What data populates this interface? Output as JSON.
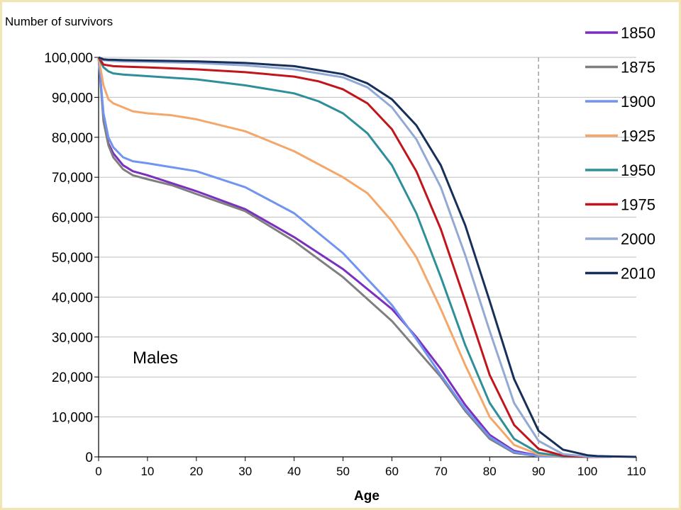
{
  "chart_data": {
    "type": "line",
    "title": "",
    "ylabel": "Number of survivors",
    "xlabel": "Age",
    "annotation": "Males",
    "xlim": [
      0,
      110
    ],
    "ylim": [
      0,
      100000
    ],
    "x_ticks": [
      "0",
      "10",
      "20",
      "30",
      "40",
      "50",
      "60",
      "70",
      "80",
      "90",
      "100",
      "110"
    ],
    "y_ticks": [
      "0",
      "10,000",
      "20,000",
      "30,000",
      "40,000",
      "50,000",
      "60,000",
      "70,000",
      "80,000",
      "90,000",
      "100,000"
    ],
    "grid": "horizontal",
    "legend_position": "right",
    "reference_line_x": 90,
    "series": [
      {
        "name": "1850",
        "color": "#7b2fbe",
        "x": [
          0,
          1,
          2,
          3,
          5,
          7,
          10,
          15,
          20,
          30,
          40,
          50,
          60,
          65,
          70,
          75,
          80,
          85,
          90,
          95,
          100,
          105
        ],
        "y": [
          100000,
          85000,
          78500,
          76000,
          73000,
          71500,
          70500,
          68500,
          66500,
          62000,
          55000,
          47000,
          37000,
          30000,
          22000,
          13000,
          5500,
          1500,
          300,
          50,
          0,
          0
        ]
      },
      {
        "name": "1875",
        "color": "#7f7f7f",
        "x": [
          0,
          1,
          2,
          3,
          5,
          7,
          10,
          15,
          20,
          30,
          40,
          50,
          60,
          65,
          70,
          75,
          80,
          85,
          90,
          95,
          100,
          105
        ],
        "y": [
          100000,
          84000,
          78000,
          75000,
          72000,
          70500,
          69500,
          68000,
          65800,
          61500,
          54000,
          45000,
          34000,
          27000,
          20000,
          11500,
          4500,
          1000,
          200,
          30,
          0,
          0
        ]
      },
      {
        "name": "1900",
        "color": "#7094f0",
        "x": [
          0,
          1,
          2,
          3,
          5,
          7,
          10,
          15,
          20,
          30,
          40,
          50,
          60,
          65,
          70,
          75,
          80,
          85,
          90,
          95,
          100,
          105
        ],
        "y": [
          100000,
          86000,
          80000,
          77500,
          75000,
          74000,
          73500,
          72500,
          71500,
          67500,
          61000,
          51000,
          38000,
          29500,
          20500,
          12000,
          5000,
          1200,
          200,
          30,
          0,
          0
        ]
      },
      {
        "name": "1925",
        "color": "#f4a76a",
        "x": [
          0,
          1,
          2,
          3,
          5,
          7,
          10,
          15,
          20,
          30,
          40,
          50,
          55,
          60,
          65,
          70,
          75,
          80,
          85,
          90,
          95,
          100,
          105
        ],
        "y": [
          100000,
          93000,
          89500,
          88500,
          87500,
          86500,
          86000,
          85500,
          84500,
          81500,
          76500,
          70000,
          66000,
          59000,
          50000,
          37000,
          23000,
          10000,
          3000,
          600,
          80,
          0,
          0
        ]
      },
      {
        "name": "1950",
        "color": "#2e8f9a",
        "x": [
          0,
          1,
          2,
          3,
          5,
          10,
          20,
          30,
          40,
          45,
          50,
          55,
          60,
          65,
          70,
          75,
          80,
          85,
          90,
          95,
          100,
          105
        ],
        "y": [
          100000,
          97500,
          96500,
          96000,
          95700,
          95300,
          94500,
          93000,
          91000,
          89000,
          86000,
          81000,
          73000,
          61000,
          45000,
          28000,
          13500,
          4500,
          1000,
          150,
          0,
          0
        ]
      },
      {
        "name": "1975",
        "color": "#c0151b",
        "x": [
          0,
          1,
          2,
          3,
          5,
          10,
          20,
          30,
          40,
          45,
          50,
          55,
          60,
          65,
          70,
          75,
          80,
          85,
          90,
          95,
          100,
          105
        ],
        "y": [
          100000,
          98200,
          98000,
          97800,
          97700,
          97500,
          97000,
          96300,
          95200,
          94000,
          92000,
          88500,
          82000,
          71500,
          57000,
          39000,
          20500,
          8000,
          2000,
          300,
          0,
          0
        ]
      },
      {
        "name": "2000",
        "color": "#92a9d6",
        "x": [
          0,
          1,
          2,
          3,
          5,
          10,
          20,
          30,
          40,
          50,
          55,
          60,
          65,
          70,
          75,
          80,
          85,
          90,
          95,
          100,
          105
        ],
        "y": [
          100000,
          99300,
          99200,
          99100,
          99000,
          98900,
          98600,
          98000,
          97000,
          95000,
          92500,
          87500,
          79500,
          67500,
          50500,
          31500,
          13500,
          4000,
          700,
          80,
          0
        ],
        "dashed": false
      },
      {
        "name": "2010",
        "color": "#16305a",
        "x": [
          0,
          1,
          2,
          3,
          5,
          10,
          20,
          30,
          40,
          50,
          55,
          60,
          65,
          70,
          75,
          80,
          85,
          90,
          95,
          100,
          102,
          105,
          110
        ],
        "y": [
          100000,
          99500,
          99400,
          99400,
          99300,
          99200,
          99000,
          98600,
          97800,
          95800,
          93500,
          89500,
          83000,
          73000,
          58000,
          39000,
          19500,
          6500,
          1800,
          400,
          200,
          100,
          0
        ]
      }
    ]
  }
}
